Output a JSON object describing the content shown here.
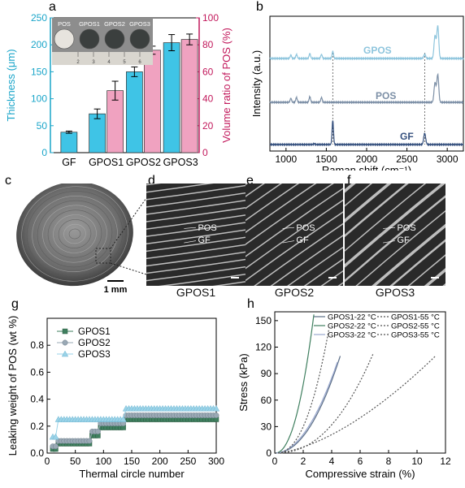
{
  "panels": {
    "a": {
      "label": "a",
      "inset": {
        "labels": [
          "POS",
          "GPOS1",
          "GPOS2",
          "GPOS3"
        ],
        "ruler_ticks": [
          "2",
          "3",
          "4",
          "5",
          "6"
        ]
      },
      "chart_data": {
        "type": "bar",
        "categories": [
          "GF",
          "GPOS1",
          "GPOS2",
          "GPOS3"
        ],
        "series": [
          {
            "axis": "left",
            "color": "#3fc4e6",
            "values": [
              38,
              72,
              150,
              204
            ],
            "errors": [
              2,
              9,
              9,
              15
            ]
          },
          {
            "axis": "right",
            "color": "#f0a2c0",
            "values": [
              null,
              46,
              76,
              84
            ],
            "errors": [
              null,
              7,
              3,
              4
            ]
          }
        ],
        "ylabel_left": "Thickness (μm)",
        "ylabel_right": "Volume ratio of POS (%)",
        "ylim_left": [
          0,
          250
        ],
        "ylim_right": [
          0,
          100
        ],
        "yticks_left": [
          0,
          50,
          100,
          150,
          200,
          250
        ],
        "yticks_right": [
          0,
          20,
          40,
          60,
          80,
          100
        ],
        "left_axis_color": "#1aa5c9",
        "right_axis_color": "#c2185b"
      }
    },
    "b": {
      "label": "b",
      "chart_data": {
        "type": "line",
        "xlabel": "Raman shift (cm⁻¹)",
        "ylabel": "Intensity (a.u.)",
        "xlim": [
          800,
          3200
        ],
        "xticks": [
          1000,
          1500,
          2000,
          2500,
          3000
        ],
        "dashed_lines_x": [
          1580,
          2720
        ],
        "series": [
          {
            "name": "GPOS",
            "color": "#8ec5dd",
            "peaks": [
              [
                1060,
                4
              ],
              [
                1130,
                5
              ],
              [
                1295,
                6
              ],
              [
                1440,
                5
              ],
              [
                1580,
                9
              ],
              [
                2720,
                5
              ],
              [
                2848,
                28
              ],
              [
                2882,
                40
              ]
            ]
          },
          {
            "name": "POS",
            "color": "#7c8fa6",
            "peaks": [
              [
                1060,
                5
              ],
              [
                1130,
                6
              ],
              [
                1295,
                7
              ],
              [
                1440,
                6
              ],
              [
                2848,
                24
              ],
              [
                2882,
                34
              ]
            ]
          },
          {
            "name": "GF",
            "color": "#35507e",
            "peaks": [
              [
                1350,
                1
              ],
              [
                1580,
                30
              ],
              [
                2720,
                14
              ]
            ]
          }
        ]
      }
    },
    "c": {
      "label": "c",
      "scale_bar": "1 mm"
    },
    "d": {
      "label": "d",
      "caption": "GPOS1",
      "tags": [
        "POS",
        "GF"
      ]
    },
    "e": {
      "label": "e",
      "caption": "GPOS2",
      "tags": [
        "POS",
        "GF"
      ]
    },
    "f": {
      "label": "f",
      "caption": "GPOS3",
      "tags": [
        "POS",
        "GF"
      ]
    },
    "g": {
      "label": "g",
      "chart_data": {
        "type": "scatter",
        "xlabel": "Thermal circle number",
        "ylabel": "Leaking weight of POS (wt %)",
        "xlim": [
          0,
          300
        ],
        "ylim": [
          0,
          1.0
        ],
        "xticks": [
          0,
          50,
          100,
          150,
          200,
          250,
          300
        ],
        "yticks": [
          0,
          0.2,
          0.4,
          0.6,
          0.8
        ],
        "legend": "top-left",
        "series": [
          {
            "name": "GPOS1",
            "color": "#3f7f5f",
            "marker": "square",
            "steps": [
              [
                10,
                0.03
              ],
              [
                20,
                0.07
              ],
              [
                80,
                0.13
              ],
              [
                95,
                0.19
              ],
              [
                140,
                0.25
              ],
              [
                300,
                0.25
              ]
            ]
          },
          {
            "name": "GPOS2",
            "color": "#9aa9b5",
            "marker": "circle",
            "steps": [
              [
                10,
                0.05
              ],
              [
                20,
                0.09
              ],
              [
                80,
                0.16
              ],
              [
                95,
                0.22
              ],
              [
                140,
                0.28
              ],
              [
                300,
                0.28
              ]
            ]
          },
          {
            "name": "GPOS3",
            "color": "#9ad3e8",
            "marker": "triangle",
            "steps": [
              [
                10,
                0.12
              ],
              [
                20,
                0.25
              ],
              [
                140,
                0.33
              ],
              [
                300,
                0.33
              ]
            ]
          }
        ]
      }
    },
    "h": {
      "label": "h",
      "chart_data": {
        "type": "line",
        "xlabel": "Compressive strain (%)",
        "ylabel": "Stress (kPa)",
        "xlim": [
          0,
          12
        ],
        "ylim": [
          0,
          160
        ],
        "xticks": [
          0,
          2,
          4,
          6,
          8,
          10,
          12
        ],
        "yticks": [
          0,
          30,
          60,
          90,
          120,
          150
        ],
        "legend": "top",
        "series": [
          {
            "name": "GPOS1-22 °C",
            "color": "#5b6e86",
            "dash": false,
            "end": [
              4.6,
              110
            ],
            "exp": 2.1
          },
          {
            "name": "GPOS2-22 °C",
            "color": "#3f7f5f",
            "dash": false,
            "end": [
              2.75,
              157
            ],
            "exp": 2.2
          },
          {
            "name": "GPOS3-22 °C",
            "color": "#9aa8cf",
            "dash": false,
            "end": [
              4.4,
              103
            ],
            "exp": 2.0
          },
          {
            "name": "GPOS1-55 °C",
            "color": "#555555",
            "dash": true,
            "end": [
              3.8,
              140
            ],
            "exp": 2.4
          },
          {
            "name": "GPOS2-55 °C",
            "color": "#555555",
            "dash": true,
            "end": [
              6.9,
              112
            ],
            "exp": 2.3
          },
          {
            "name": "GPOS3-55 °C",
            "color": "#555555",
            "dash": true,
            "end": [
              11.3,
              110
            ],
            "exp": 1.6
          }
        ]
      }
    }
  }
}
